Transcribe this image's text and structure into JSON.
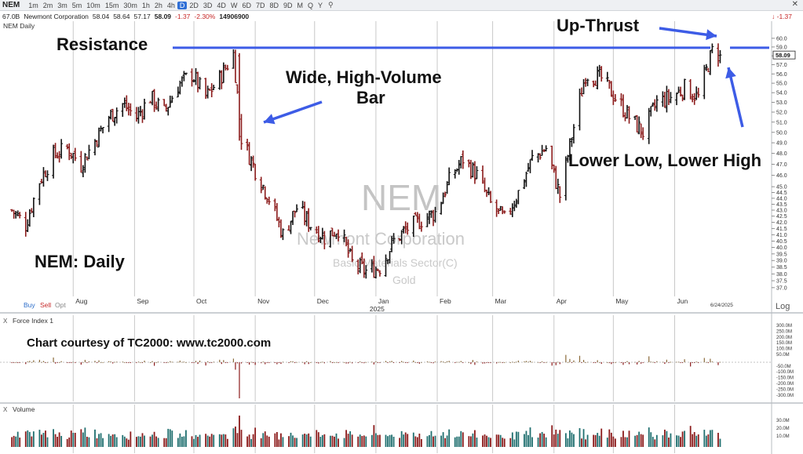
{
  "toolbar": {
    "symbol": "NEM",
    "timeframes": [
      "1m",
      "2m",
      "3m",
      "5m",
      "10m",
      "15m",
      "30m",
      "1h",
      "2h",
      "4h",
      "D",
      "2D",
      "3D",
      "4D",
      "W",
      "6D",
      "7D",
      "8D",
      "9D",
      "M",
      "Q",
      "Y"
    ],
    "active_timeframe": "D",
    "close_icon": "close-icon",
    "search_icon": "search-icon"
  },
  "quote": {
    "market_cap": "67.0B",
    "name": "Newmont Corporation",
    "open": "58.04",
    "high": "58.64",
    "low": "57.17",
    "close": "58.09",
    "change": "-1.37",
    "change_pct": "-2.30%",
    "volume": "14906900",
    "right_change": "-1.37"
  },
  "price_panel": {
    "label": "NEM Daily",
    "watermark_symbol": "NEM",
    "watermark_company": "Newmont Corporation",
    "watermark_sector": "Basic Materials Sector(C)",
    "watermark_industry": "Gold",
    "price_tag": "58.09",
    "log_label": "Log",
    "date_tag": "6/24/2025"
  },
  "trade_buttons": {
    "buy": "Buy",
    "sell": "Sell",
    "opt": "Opt"
  },
  "force_panel": {
    "label": "Force Index 1"
  },
  "volume_panel": {
    "label": "Volume"
  },
  "annotations": {
    "resistance": "Resistance",
    "wide_bar_line1": "Wide, High-Volume",
    "wide_bar_line2": "Bar",
    "upthrust": "Up-Thrust",
    "lower": "Lower Low, Lower High",
    "chart_name": "NEM:  Daily",
    "courtesy": "Chart courtesy of TC2000:  www.tc2000.com"
  },
  "colors": {
    "up": "#111111",
    "down": "#8b1a1a",
    "annotation_blue": "#3d5ce6",
    "vol_up": "#1f6f6f",
    "vol_down": "#8b1a1a",
    "grid": "#c8c8c8"
  },
  "chart_data": {
    "type": "ohlc",
    "scale": "log",
    "price_axis_ticks": [
      37.0,
      37.5,
      38.0,
      38.5,
      39.0,
      39.5,
      40.0,
      40.5,
      41.0,
      41.5,
      42.0,
      42.5,
      43.0,
      43.5,
      44.0,
      44.5,
      45.0,
      46.0,
      47.0,
      48.0,
      49.0,
      50.0,
      51.0,
      52.0,
      53.0,
      54.0,
      55.0,
      56.0,
      57.0,
      58.0,
      59.0,
      60.0
    ],
    "price_range": [
      36.6,
      61.0
    ],
    "month_labels": [
      {
        "label": "Aug",
        "date": "2024-08-01"
      },
      {
        "label": "Sep",
        "date": "2024-09-01"
      },
      {
        "label": "Oct",
        "date": "2024-10-01"
      },
      {
        "label": "Nov",
        "date": "2024-11-01"
      },
      {
        "label": "Dec",
        "date": "2024-12-01"
      },
      {
        "label": "Jan",
        "date": "2025-01-01"
      },
      {
        "label": "Feb",
        "date": "2025-02-01"
      },
      {
        "label": "Mar",
        "date": "2025-03-01"
      },
      {
        "label": "Apr",
        "date": "2025-04-01"
      },
      {
        "label": "May",
        "date": "2025-05-01"
      },
      {
        "label": "Jun",
        "date": "2025-06-01"
      }
    ],
    "year_label": "2025",
    "resistance_level": 59.0,
    "closes": [
      [
        "2024-07-01",
        43.0
      ],
      [
        "2024-07-08",
        41.8
      ],
      [
        "2024-07-15",
        45.5
      ],
      [
        "2024-07-22",
        47.8
      ],
      [
        "2024-07-29",
        48.5
      ],
      [
        "2024-08-05",
        47.0
      ],
      [
        "2024-08-12",
        49.2
      ],
      [
        "2024-08-19",
        51.5
      ],
      [
        "2024-08-26",
        52.8
      ],
      [
        "2024-09-02",
        51.5
      ],
      [
        "2024-09-09",
        53.5
      ],
      [
        "2024-09-16",
        52.0
      ],
      [
        "2024-09-23",
        54.8
      ],
      [
        "2024-09-30",
        56.0
      ],
      [
        "2024-10-07",
        53.5
      ],
      [
        "2024-10-14",
        55.5
      ],
      [
        "2024-10-21",
        58.2
      ],
      [
        "2024-10-25",
        49.5
      ],
      [
        "2024-11-01",
        46.5
      ],
      [
        "2024-11-08",
        44.0
      ],
      [
        "2024-11-15",
        41.0
      ],
      [
        "2024-11-22",
        43.2
      ],
      [
        "2024-11-29",
        41.8
      ],
      [
        "2024-12-06",
        40.8
      ],
      [
        "2024-12-13",
        41.5
      ],
      [
        "2024-12-20",
        38.8
      ],
      [
        "2024-12-27",
        38.2
      ],
      [
        "2025-01-03",
        38.5
      ],
      [
        "2025-01-10",
        40.5
      ],
      [
        "2025-01-17",
        41.5
      ],
      [
        "2025-01-24",
        42.2
      ],
      [
        "2025-01-31",
        42.8
      ],
      [
        "2025-02-07",
        45.5
      ],
      [
        "2025-02-14",
        47.5
      ],
      [
        "2025-02-21",
        46.0
      ],
      [
        "2025-02-28",
        43.5
      ],
      [
        "2025-03-07",
        42.2
      ],
      [
        "2025-03-14",
        44.5
      ],
      [
        "2025-03-21",
        47.5
      ],
      [
        "2025-03-28",
        48.5
      ],
      [
        "2025-04-04",
        44.2
      ],
      [
        "2025-04-11",
        50.5
      ],
      [
        "2025-04-17",
        56.0
      ],
      [
        "2025-04-25",
        55.5
      ],
      [
        "2025-05-02",
        53.5
      ],
      [
        "2025-05-09",
        51.5
      ],
      [
        "2025-05-16",
        50.0
      ],
      [
        "2025-05-23",
        53.0
      ],
      [
        "2025-05-30",
        53.5
      ],
      [
        "2025-06-06",
        54.5
      ],
      [
        "2025-06-13",
        53.5
      ],
      [
        "2025-06-20",
        58.5
      ],
      [
        "2025-06-24",
        58.09
      ]
    ]
  }
}
